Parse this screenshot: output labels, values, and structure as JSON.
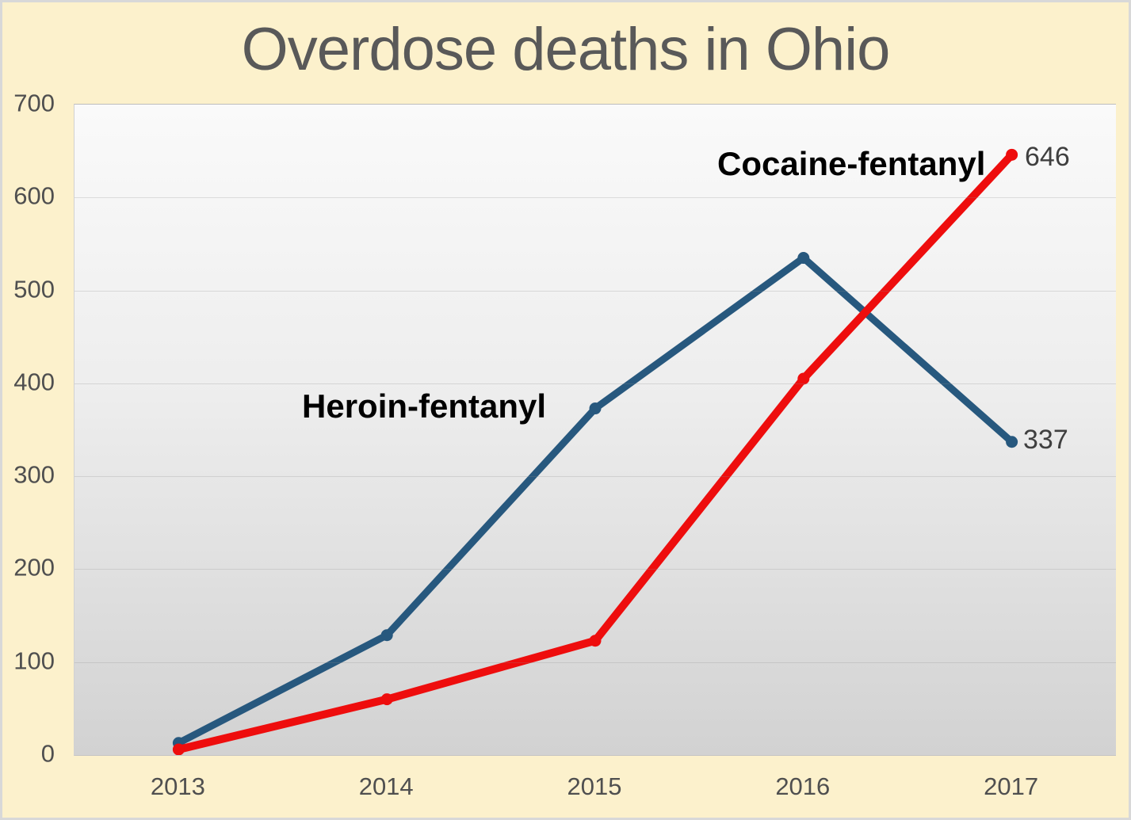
{
  "chart_data": {
    "type": "line",
    "title": "Overdose deaths in Ohio",
    "xlabel": "",
    "ylabel": "",
    "categories": [
      "2013",
      "2014",
      "2015",
      "2016",
      "2017"
    ],
    "series": [
      {
        "name": "Heroin-fentanyl",
        "color": "#27587E",
        "values": [
          13,
          129,
          373,
          535,
          337
        ],
        "end_label": "337"
      },
      {
        "name": "Cocaine-fentanyl",
        "color": "#EE0D0D",
        "values": [
          6,
          60,
          123,
          405,
          646
        ],
        "end_label": "646"
      }
    ],
    "ylim": [
      0,
      700
    ],
    "yticks": [
      0,
      100,
      200,
      300,
      400,
      500,
      600,
      700
    ],
    "grid": "horizontal",
    "legend_position": "inline-labels-near-lines",
    "plot_background": "gray-gradient-top-light"
  },
  "colors": {
    "slide_background": "#FCF1CC",
    "slide_border": "#D8D8D8",
    "title_text": "#595959",
    "tick_text": "#4F4F4F",
    "data_label_text": "#3F3F3F",
    "heroin_line": "#27587E",
    "cocaine_line": "#EE0D0D"
  }
}
